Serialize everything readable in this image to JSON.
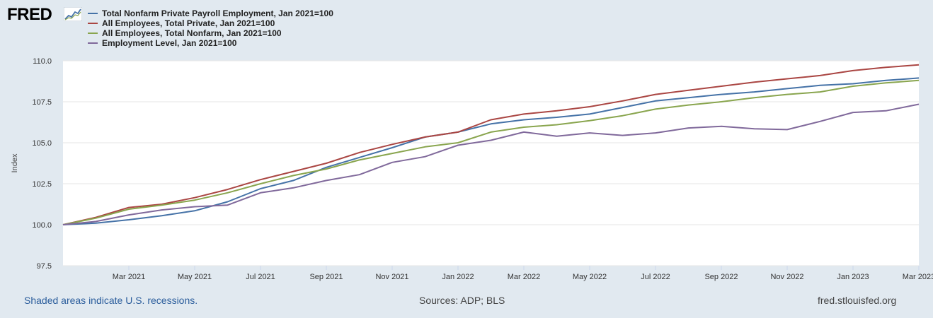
{
  "logo": {
    "text": "FRED",
    "icon": "sparkline-chart-icon"
  },
  "footer": {
    "recession_note": "Shaded areas indicate U.S. recessions.",
    "sources": "Sources: ADP; BLS",
    "site": "fred.stlouisfed.org"
  },
  "colors": {
    "background": "#e1e9f0",
    "plot_background": "#ffffff",
    "grid": "#e6e6e6"
  },
  "chart_data": {
    "type": "line",
    "title": "",
    "xlabel": "",
    "ylabel": "Index",
    "ylim": [
      97.5,
      110.0
    ],
    "yticks": [
      "97.5",
      "100.0",
      "102.5",
      "105.0",
      "107.5",
      "110.0"
    ],
    "x": [
      "Jan 2021",
      "Feb 2021",
      "Mar 2021",
      "Apr 2021",
      "May 2021",
      "Jun 2021",
      "Jul 2021",
      "Aug 2021",
      "Sep 2021",
      "Oct 2021",
      "Nov 2021",
      "Dec 2021",
      "Jan 2022",
      "Feb 2022",
      "Mar 2022",
      "Apr 2022",
      "May 2022",
      "Jun 2022",
      "Jul 2022",
      "Aug 2022",
      "Sep 2022",
      "Oct 2022",
      "Nov 2022",
      "Dec 2022",
      "Jan 2023",
      "Feb 2023",
      "Mar 2023"
    ],
    "xticks": [
      {
        "index": 2,
        "label": "Mar 2021"
      },
      {
        "index": 4,
        "label": "May 2021"
      },
      {
        "index": 6,
        "label": "Jul 2021"
      },
      {
        "index": 8,
        "label": "Sep 2021"
      },
      {
        "index": 10,
        "label": "Nov 2021"
      },
      {
        "index": 12,
        "label": "Jan 2022"
      },
      {
        "index": 14,
        "label": "Mar 2022"
      },
      {
        "index": 16,
        "label": "May 2022"
      },
      {
        "index": 18,
        "label": "Jul 2022"
      },
      {
        "index": 20,
        "label": "Sep 2022"
      },
      {
        "index": 22,
        "label": "Nov 2022"
      },
      {
        "index": 24,
        "label": "Jan 2023"
      },
      {
        "index": 26,
        "label": "Mar 2023"
      }
    ],
    "series": [
      {
        "name": "Total Nonfarm Private Payroll Employment, Jan 2021=100",
        "color": "#4572a7",
        "values": [
          100.0,
          100.1,
          100.3,
          100.55,
          100.85,
          101.4,
          102.2,
          102.7,
          103.5,
          104.1,
          104.7,
          105.35,
          105.65,
          106.15,
          106.4,
          106.55,
          106.75,
          107.15,
          107.55,
          107.75,
          107.95,
          108.1,
          108.3,
          108.5,
          108.6,
          108.8,
          108.95
        ]
      },
      {
        "name": "All Employees, Total Private, Jan 2021=100",
        "color": "#aa4643",
        "values": [
          100.0,
          100.45,
          101.05,
          101.25,
          101.65,
          102.15,
          102.75,
          103.25,
          103.75,
          104.4,
          104.9,
          105.35,
          105.65,
          106.4,
          106.75,
          106.95,
          107.2,
          107.55,
          107.95,
          108.2,
          108.45,
          108.7,
          108.9,
          109.1,
          109.4,
          109.6,
          109.75
        ]
      },
      {
        "name": "All Employees, Total Nonfarm, Jan 2021=100",
        "color": "#89a54e",
        "values": [
          100.0,
          100.4,
          100.95,
          101.2,
          101.5,
          101.95,
          102.5,
          103.0,
          103.4,
          103.95,
          104.35,
          104.75,
          105.0,
          105.65,
          105.95,
          106.1,
          106.35,
          106.65,
          107.05,
          107.3,
          107.5,
          107.75,
          107.95,
          108.1,
          108.45,
          108.65,
          108.8
        ]
      },
      {
        "name": "Employment Level, Jan 2021=100",
        "color": "#80699b",
        "values": [
          100.0,
          100.2,
          100.6,
          100.9,
          101.1,
          101.2,
          101.95,
          102.25,
          102.7,
          103.05,
          103.8,
          104.15,
          104.85,
          105.15,
          105.65,
          105.4,
          105.6,
          105.45,
          105.6,
          105.9,
          106.0,
          105.85,
          105.8,
          106.3,
          106.85,
          106.95,
          107.35
        ]
      }
    ]
  }
}
